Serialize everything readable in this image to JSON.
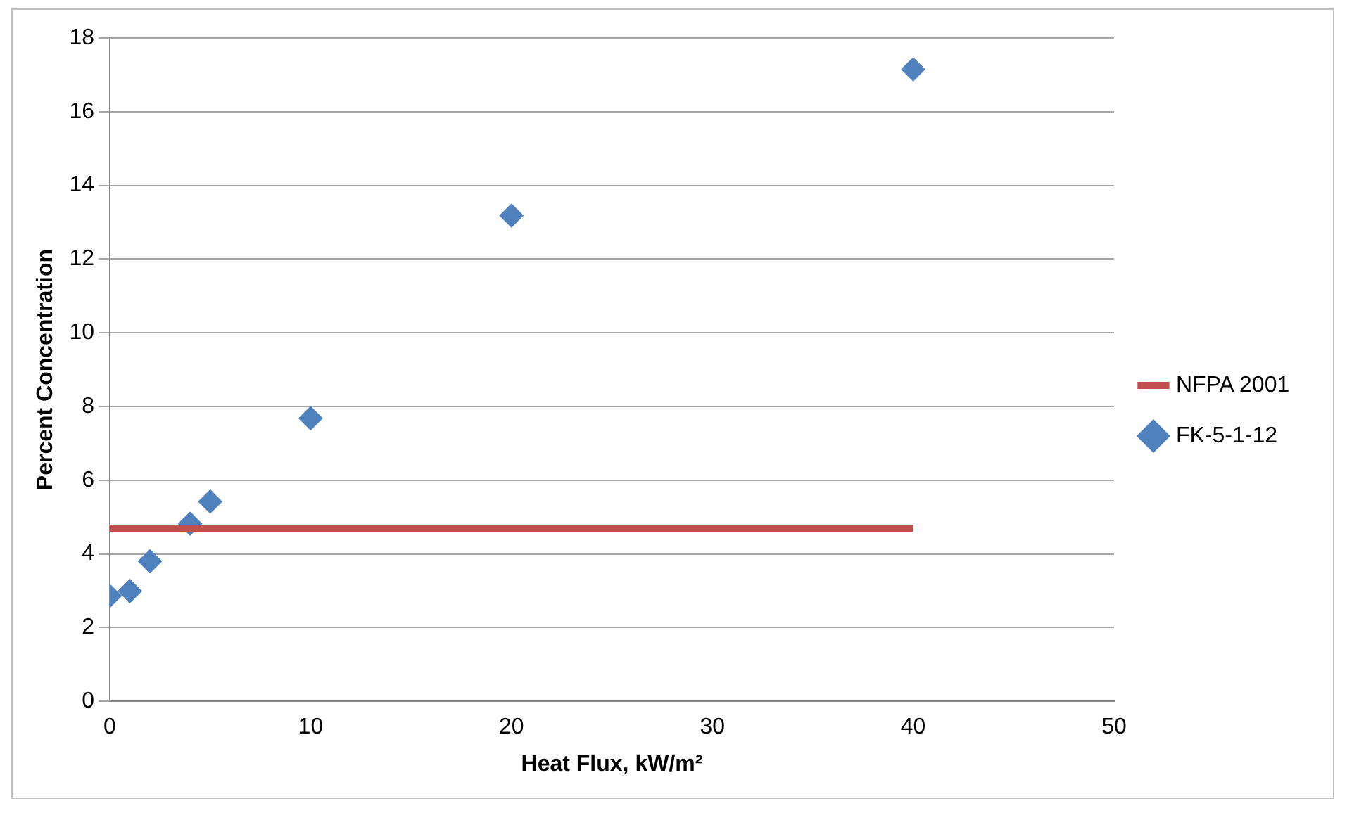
{
  "chart_data": {
    "type": "scatter",
    "xlabel": "Heat Flux, kW/m²",
    "ylabel": "Percent Concentration",
    "xlim": [
      0,
      50
    ],
    "xticks": [
      0,
      10,
      20,
      30,
      40,
      50
    ],
    "ylim": [
      0,
      18
    ],
    "yticks": [
      0,
      2,
      4,
      6,
      8,
      10,
      12,
      14,
      16,
      18
    ],
    "grid": "y",
    "legend": "right",
    "series": [
      {
        "name": "NFPA 2001",
        "type": "line",
        "color": "#c0504d",
        "x": [
          0,
          40
        ],
        "values": [
          4.7,
          4.7
        ],
        "marker": "none",
        "line_style": "solid"
      },
      {
        "name": "FK-5-1-12",
        "type": "scatter",
        "color": "#4f81bd",
        "marker": "diamond",
        "x": [
          0,
          1,
          2,
          4,
          5,
          10,
          20,
          40
        ],
        "values": [
          2.86,
          2.99,
          3.8,
          4.82,
          5.42,
          7.68,
          13.18,
          17.15
        ]
      }
    ]
  }
}
